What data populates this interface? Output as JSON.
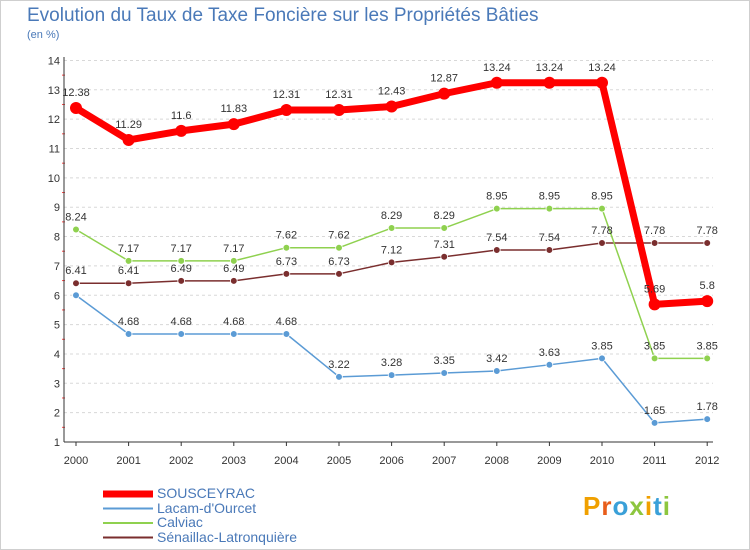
{
  "chart_data": {
    "type": "line",
    "title": "Evolution du Taux de Taxe Foncière sur les Propriétés Bâties",
    "subtitle": "(en %)",
    "xlabel": "",
    "ylabel": "",
    "x": [
      "2000",
      "2001",
      "2002",
      "2003",
      "2004",
      "2005",
      "2006",
      "2007",
      "2008",
      "2009",
      "2010",
      "2011",
      "2012"
    ],
    "ylim": [
      1,
      14
    ],
    "yticks": [
      "1",
      "2",
      "3",
      "4",
      "5",
      "6",
      "7",
      "8",
      "9",
      "10",
      "11",
      "12",
      "13",
      "14"
    ],
    "grid": "horizontal dashed",
    "legend_position": "bottom-left",
    "series": [
      {
        "name": "SOUSCEYRAC",
        "color": "#ff0000",
        "values": [
          12.38,
          11.29,
          11.6,
          11.83,
          12.31,
          12.31,
          12.43,
          12.87,
          13.24,
          13.24,
          13.24,
          5.69,
          5.8
        ],
        "labels": [
          "12.38",
          "11.29",
          "11.6",
          "11.83",
          "12.31",
          "12.31",
          "12.43",
          "12.87",
          "13.24",
          "13.24",
          "13.24",
          "5.69",
          "5.8"
        ]
      },
      {
        "name": "Lacam-d'Ourcet",
        "color": "#5b9bd5",
        "values": [
          6.0,
          4.68,
          4.68,
          4.68,
          4.68,
          3.22,
          3.28,
          3.35,
          3.42,
          3.63,
          3.85,
          1.65,
          1.78
        ],
        "labels": [
          "",
          "4.68",
          "4.68",
          "4.68",
          "4.68",
          "3.22",
          "3.28",
          "3.35",
          "3.42",
          "3.63",
          "3.85",
          "1.65",
          "1.78"
        ]
      },
      {
        "name": "Calviac",
        "color": "#8fd14f",
        "values": [
          8.24,
          7.17,
          7.17,
          7.17,
          7.62,
          7.62,
          8.29,
          8.29,
          8.95,
          8.95,
          8.95,
          3.85,
          3.85
        ],
        "labels": [
          "8.24",
          "7.17",
          "7.17",
          "7.17",
          "7.62",
          "7.62",
          "8.29",
          "8.29",
          "8.95",
          "8.95",
          "8.95",
          "3.85",
          "3.85"
        ]
      },
      {
        "name": "Sénaillac-Latronquière",
        "color": "#7a2e2e",
        "values": [
          6.41,
          6.41,
          6.49,
          6.49,
          6.73,
          6.73,
          7.12,
          7.31,
          7.54,
          7.54,
          7.78,
          7.78,
          7.78
        ],
        "labels": [
          "6.41",
          "6.41",
          "6.49",
          "6.49",
          "6.73",
          "6.73",
          "7.12",
          "7.31",
          "7.54",
          "7.54",
          "7.78",
          "7.78",
          "7.78"
        ]
      }
    ]
  },
  "logo": {
    "text": "Proxiti"
  }
}
